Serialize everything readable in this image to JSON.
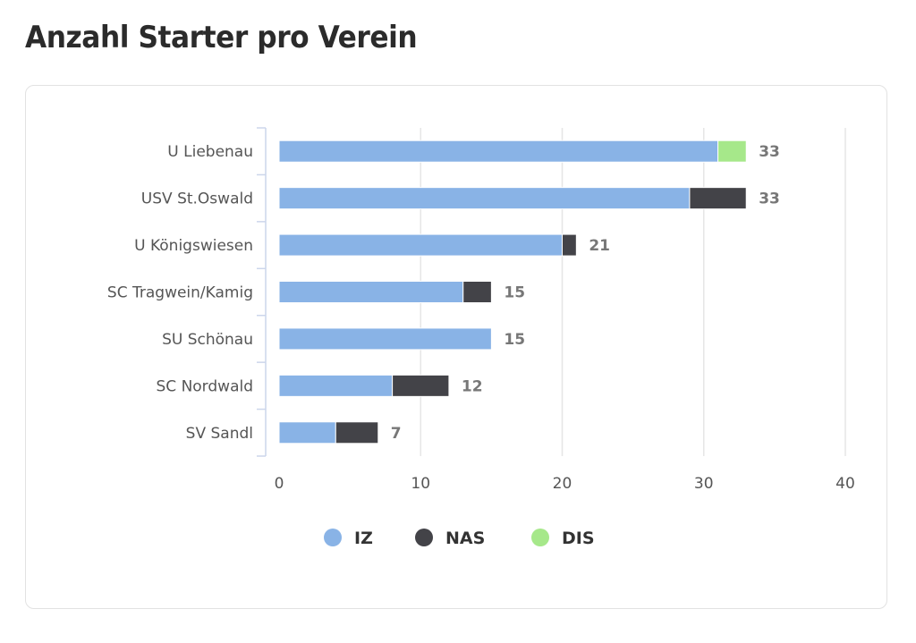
{
  "title": "Anzahl Starter pro Verein",
  "chart_data": {
    "type": "bar",
    "orientation": "horizontal",
    "stacked": true,
    "categories": [
      "U Liebenau",
      "USV St.Oswald",
      "U Königswiesen",
      "SC Tragwein/Kamig",
      "SU Schönau",
      "SC Nordwald",
      "SV Sandl"
    ],
    "series": [
      {
        "name": "IZ",
        "color": "#89b3e6",
        "values": [
          31,
          29,
          20,
          13,
          15,
          8,
          4
        ]
      },
      {
        "name": "NAS",
        "color": "#434348",
        "values": [
          0,
          4,
          1,
          2,
          0,
          4,
          3
        ]
      },
      {
        "name": "DIS",
        "color": "#a6e88a",
        "values": [
          2,
          0,
          0,
          0,
          0,
          0,
          0
        ]
      }
    ],
    "totals": [
      33,
      33,
      21,
      15,
      15,
      12,
      7
    ],
    "xlim": [
      0,
      40
    ],
    "xticks": [
      0,
      10,
      20,
      30,
      40
    ],
    "grid": true,
    "legend": "bottom-center"
  }
}
